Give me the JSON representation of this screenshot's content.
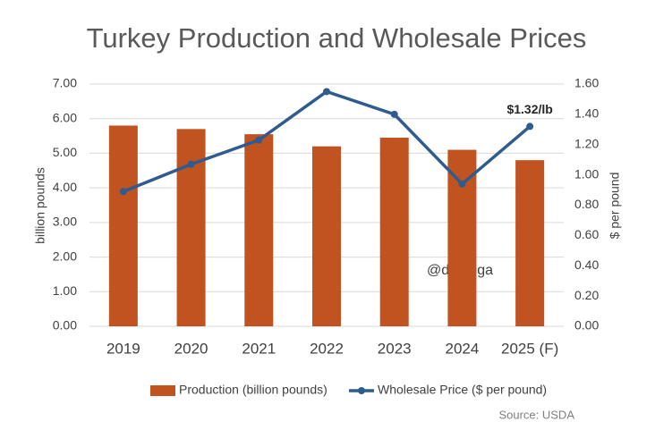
{
  "chart_data": {
    "type": "bar_line",
    "title": "Turkey Production and Wholesale Prices",
    "y_label": "billion pounds",
    "y2_label": "$ per pound",
    "categories": [
      "2019",
      "2020",
      "2021",
      "2022",
      "2023",
      "2024",
      "2025 (F)"
    ],
    "series": [
      {
        "name": "Production (billion pounds)",
        "type": "bar",
        "color": "#c0531f",
        "values": [
          5.8,
          5.7,
          5.55,
          5.2,
          5.45,
          5.1,
          4.8
        ]
      },
      {
        "name": "Wholesale Price ($ per pound)",
        "type": "line",
        "axis": "y2",
        "color": "#2f5b8f",
        "values": [
          0.89,
          1.07,
          1.23,
          1.55,
          1.4,
          0.94,
          1.32
        ],
        "value_labels": [
          null,
          null,
          null,
          null,
          null,
          null,
          "$1.32/lb"
        ]
      }
    ],
    "ylim": [
      0,
      7
    ],
    "yticks": [
      {
        "value": 0,
        "label": "0.00"
      },
      {
        "value": 1,
        "label": "1.00"
      },
      {
        "value": 2,
        "label": "2.00"
      },
      {
        "value": 3,
        "label": "3.00"
      },
      {
        "value": 4,
        "label": "4.00"
      },
      {
        "value": 5,
        "label": "5.00"
      },
      {
        "value": 6,
        "label": "6.00"
      },
      {
        "value": 7,
        "label": "7.00"
      }
    ],
    "y2lim": [
      0,
      1.6
    ],
    "y2ticks": [
      {
        "value": 0,
        "label": "0.00"
      },
      {
        "value": 0.2,
        "label": "0.20"
      },
      {
        "value": 0.4,
        "label": "0.40"
      },
      {
        "value": 0.6,
        "label": "0.60"
      },
      {
        "value": 0.8,
        "label": "0.80"
      },
      {
        "value": 1,
        "label": "1.00"
      },
      {
        "value": 1.2,
        "label": "1.20"
      },
      {
        "value": 1.4,
        "label": "1.40"
      },
      {
        "value": 1.6,
        "label": "1.60"
      }
    ],
    "grid": true,
    "legend": "bottom",
    "watermark": "@dlortega",
    "source": "Source: USDA"
  }
}
